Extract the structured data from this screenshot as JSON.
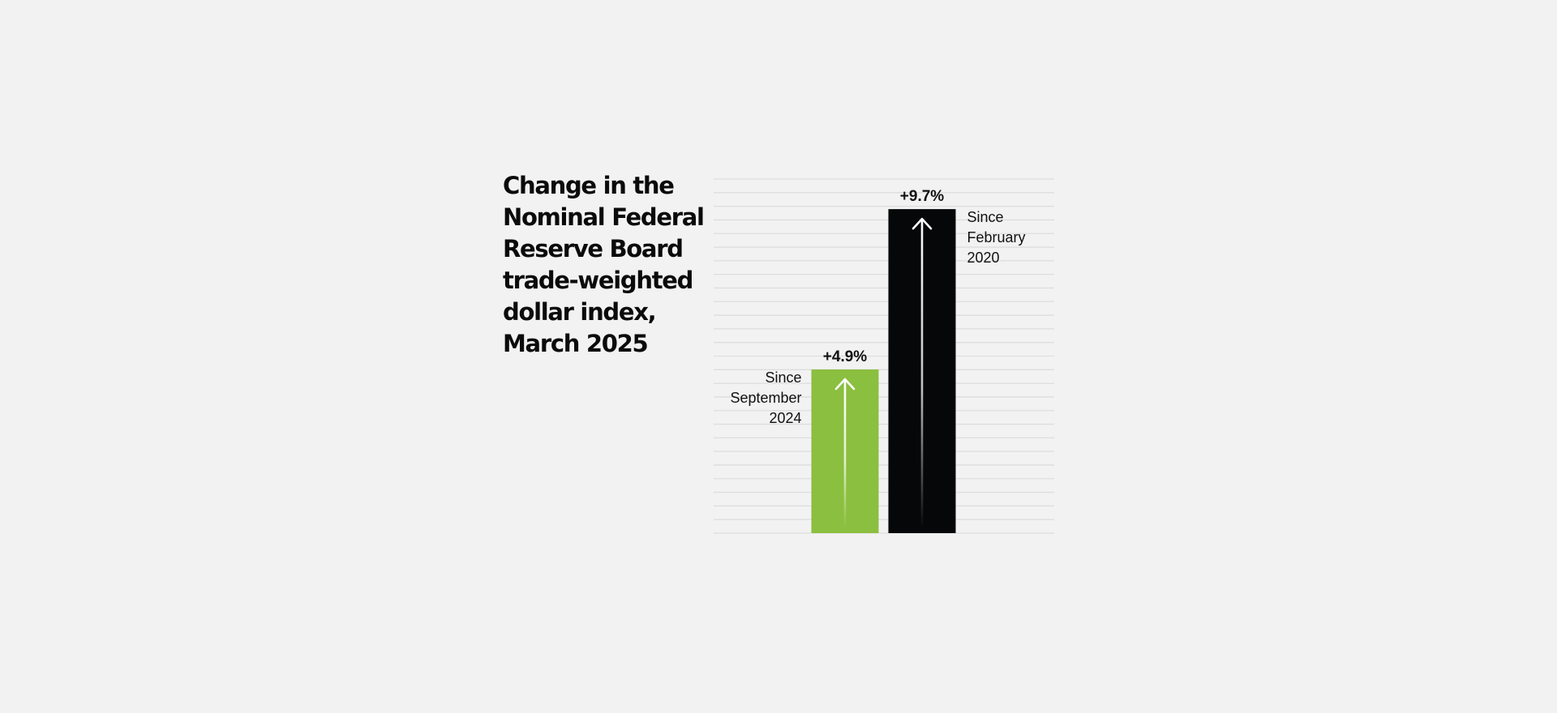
{
  "chart_data": {
    "type": "bar",
    "title_lines": [
      "Change in the",
      "Nominal Federal",
      "Reserve Board",
      "trade-weighted",
      "dollar index,",
      "March 2025"
    ],
    "categories": [
      [
        "Since",
        "September",
        "2024"
      ],
      [
        "Since",
        "February",
        "2020"
      ]
    ],
    "values": [
      4.9,
      9.7
    ],
    "value_labels": [
      "+4.9%",
      "+9.7%"
    ],
    "bar_colors": [
      "#8bbf3f",
      "#050708"
    ],
    "ylim": [
      0,
      10.6
    ],
    "grid": true,
    "gridline_count": 27,
    "arrow_icon": "up-arrow-icon"
  }
}
